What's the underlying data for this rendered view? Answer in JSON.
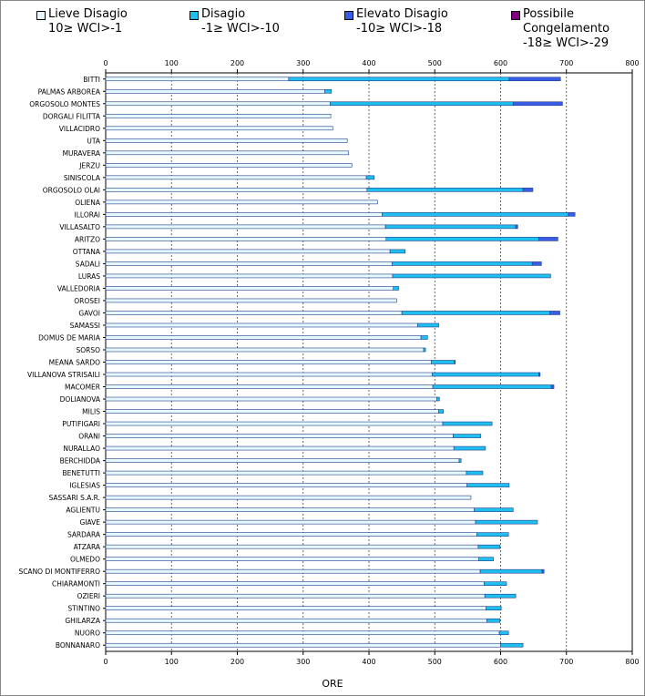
{
  "chart_data": {
    "type": "bar",
    "orientation": "horizontal",
    "stacked": true,
    "xlabel": "ORE",
    "xlim": [
      0,
      800
    ],
    "x_ticks": [
      "0",
      "100",
      "200",
      "300",
      "400",
      "500",
      "600",
      "700",
      "800"
    ],
    "grid": "vertical dashed",
    "legend_position": "top",
    "categories": [
      "BITTI",
      "PALMAS ARBOREA",
      "ORGOSOLO MONTES",
      "DORGALI FILITTA",
      "VILLACIDRO",
      "UTA",
      "MURAVERA",
      "JERZU",
      "SINISCOLA",
      "ORGOSOLO OLAI",
      "OLIENA",
      "ILLORAI",
      "VILLASALTO",
      "ARITZO",
      "OTTANA",
      "SADALI",
      "LURAS",
      "VALLEDORIA",
      "OROSEI",
      "GAVOI",
      "SAMASSI",
      "DOMUS DE MARIA",
      "SORSO",
      "MEANA SARDO",
      "VILLANOVA STRISAILI",
      "MACOMER",
      "DOLIANOVA",
      "MILIS",
      "PUTIFIGARI",
      "ORANI",
      "NURALLAO",
      "BERCHIDDA",
      "BENETUTTI",
      "IGLESIAS",
      "SASSARI S.A.R.",
      "AGLIENTU",
      "GIAVE",
      "SARDARA",
      "ATZARA",
      "OLMEDO",
      "SCANO DI MONTIFERRO",
      "CHIARAMONTI",
      "OZIERI",
      "STINTINO",
      "GHILARZA",
      "NUORO",
      "BONNANARO"
    ],
    "series": [
      {
        "name": "Lieve Disagio\n10≥ WCI>-1",
        "color": "#e6f9ff",
        "values": [
          278,
          333,
          341,
          342,
          345,
          367,
          369,
          374,
          396,
          397,
          413,
          420,
          425,
          426,
          432,
          435,
          436,
          437,
          442,
          450,
          474,
          479,
          483,
          495,
          496,
          497,
          503,
          506,
          512,
          528,
          529,
          537,
          548,
          549,
          555,
          560,
          562,
          564,
          566,
          567,
          569,
          575,
          576,
          578,
          579,
          598,
          600
        ]
      },
      {
        "name": "Disagio\n-1≥ WCI>-10",
        "color": "#1ec0f0",
        "values": [
          335,
          10,
          278,
          0,
          0,
          0,
          0,
          0,
          12,
          237,
          0,
          283,
          198,
          232,
          23,
          213,
          240,
          8,
          0,
          225,
          32,
          10,
          3,
          35,
          162,
          180,
          4,
          7,
          75,
          42,
          48,
          3,
          25,
          64,
          0,
          59,
          94,
          48,
          33,
          22,
          94,
          34,
          47,
          23,
          20,
          14,
          34
        ]
      },
      {
        "name": "Elevato Disagio\n-10≥ WCI>-18",
        "color": "#3a5de8",
        "values": [
          78,
          0,
          75,
          0,
          0,
          0,
          0,
          0,
          0,
          15,
          0,
          10,
          3,
          29,
          0,
          14,
          0,
          0,
          0,
          15,
          0,
          0,
          0,
          1,
          2,
          4,
          0,
          0,
          0,
          0,
          0,
          0,
          0,
          0,
          0,
          0,
          0,
          0,
          0,
          0,
          3,
          0,
          0,
          0,
          0,
          0,
          0
        ]
      },
      {
        "name": "Possibile\nCongelamento\n-18≥ WCI>-29",
        "color": "#800080",
        "values": [
          0,
          0,
          0,
          0,
          0,
          0,
          0,
          0,
          0,
          0,
          0,
          0,
          0,
          0,
          0,
          0,
          0,
          0,
          0,
          0,
          0,
          0,
          0,
          0,
          0,
          0,
          0,
          0,
          0,
          0,
          0,
          0,
          0,
          0,
          0,
          0,
          0,
          0,
          0,
          0,
          0,
          0,
          0,
          0,
          0,
          0,
          0
        ]
      }
    ]
  }
}
